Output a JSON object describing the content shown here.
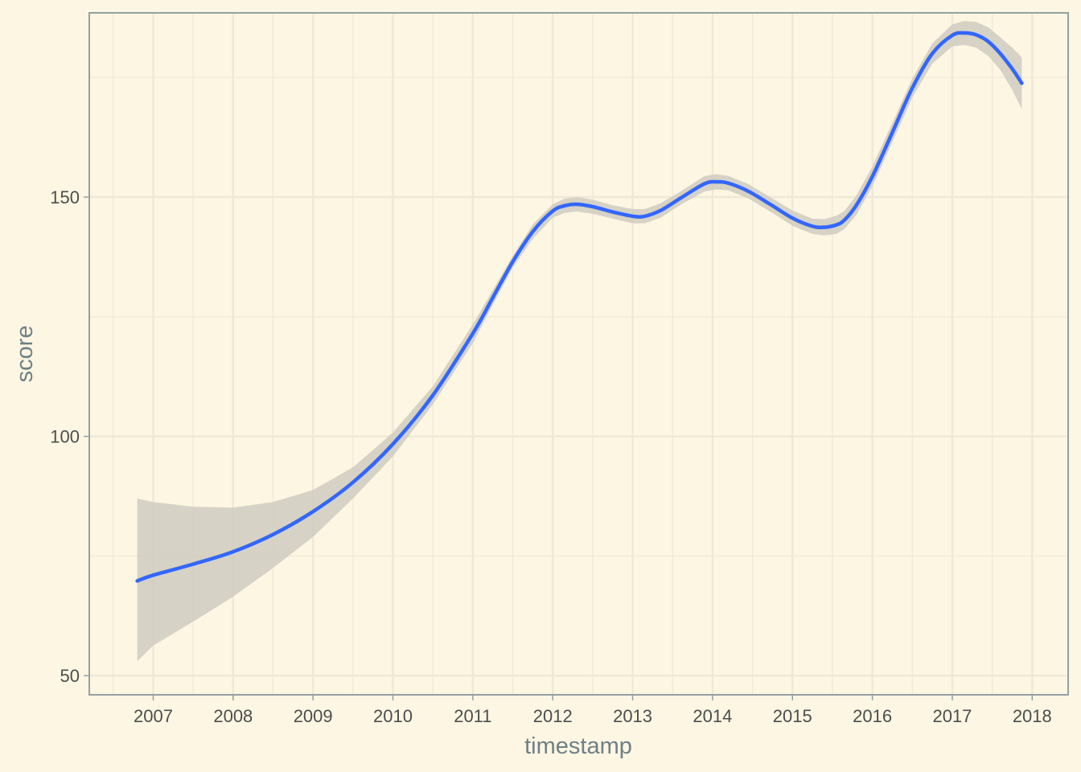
{
  "chart_data": {
    "type": "line",
    "xlabel": "timestamp",
    "ylabel": "score",
    "x_ticks": [
      "2007",
      "2008",
      "2009",
      "2010",
      "2011",
      "2012",
      "2013",
      "2014",
      "2015",
      "2016",
      "2017",
      "2018"
    ],
    "y_ticks": [
      "50",
      "100",
      "150"
    ],
    "xlim": [
      2006.2,
      2018.45
    ],
    "ylim": [
      46,
      188.5
    ],
    "grid": true,
    "legend": "none",
    "colors": {
      "background": "#fdf6e3",
      "gridline": "#eee8d5",
      "frame": "#93a1a1",
      "line": "#3366ff",
      "ribbon": "#cfcbc0",
      "axis_title": "#6e8086",
      "tick_label": "#4d4d4d"
    },
    "series": [
      {
        "x": [
          2006.8,
          2007.0,
          2007.5,
          2008.0,
          2008.5,
          2009.0,
          2009.5,
          2010.0,
          2010.5,
          2011.0,
          2011.25,
          2011.5,
          2011.75,
          2012.0,
          2012.15,
          2012.3,
          2012.5,
          2012.75,
          2013.0,
          2013.15,
          2013.35,
          2013.6,
          2013.9,
          2014.05,
          2014.2,
          2014.45,
          2014.75,
          2015.0,
          2015.25,
          2015.4,
          2015.55,
          2015.65,
          2015.8,
          2016.0,
          2016.25,
          2016.5,
          2016.75,
          2017.0,
          2017.15,
          2017.3,
          2017.45,
          2017.6,
          2017.75,
          2017.87
        ],
        "y": [
          69.8,
          71.0,
          73.3,
          75.9,
          79.5,
          84.3,
          90.4,
          98.4,
          108.6,
          121.5,
          129.0,
          136.5,
          142.8,
          147.1,
          148.2,
          148.5,
          148.0,
          146.9,
          146.0,
          146.0,
          147.2,
          149.8,
          152.8,
          153.2,
          152.9,
          151.2,
          148.2,
          145.6,
          143.9,
          143.7,
          144.2,
          145.2,
          148.3,
          154.3,
          163.5,
          172.8,
          180.0,
          183.8,
          184.3,
          183.9,
          182.5,
          180.0,
          176.8,
          173.8
        ],
        "lower": [
          53.0,
          56.3,
          61.3,
          66.5,
          72.5,
          79.0,
          87.0,
          95.8,
          106.7,
          119.5,
          127.5,
          135.3,
          141.3,
          145.7,
          146.7,
          147.0,
          146.5,
          145.5,
          144.5,
          144.5,
          145.7,
          148.4,
          151.2,
          151.6,
          151.4,
          149.7,
          146.7,
          144.0,
          142.3,
          142.0,
          142.3,
          143.3,
          146.3,
          152.2,
          161.5,
          170.8,
          177.9,
          181.5,
          181.8,
          181.2,
          179.5,
          176.6,
          172.4,
          168.4
        ],
        "upper": [
          87.0,
          86.3,
          85.3,
          85.1,
          86.3,
          88.8,
          93.5,
          100.8,
          110.5,
          123.4,
          130.6,
          137.7,
          144.3,
          148.5,
          149.7,
          150.0,
          149.5,
          148.3,
          147.5,
          147.5,
          148.7,
          151.2,
          154.4,
          154.8,
          154.4,
          152.7,
          149.7,
          147.2,
          145.5,
          145.4,
          146.1,
          147.1,
          150.3,
          156.4,
          165.5,
          174.8,
          182.1,
          186.1,
          186.8,
          186.6,
          185.5,
          183.4,
          181.2,
          179.2
        ]
      }
    ]
  }
}
